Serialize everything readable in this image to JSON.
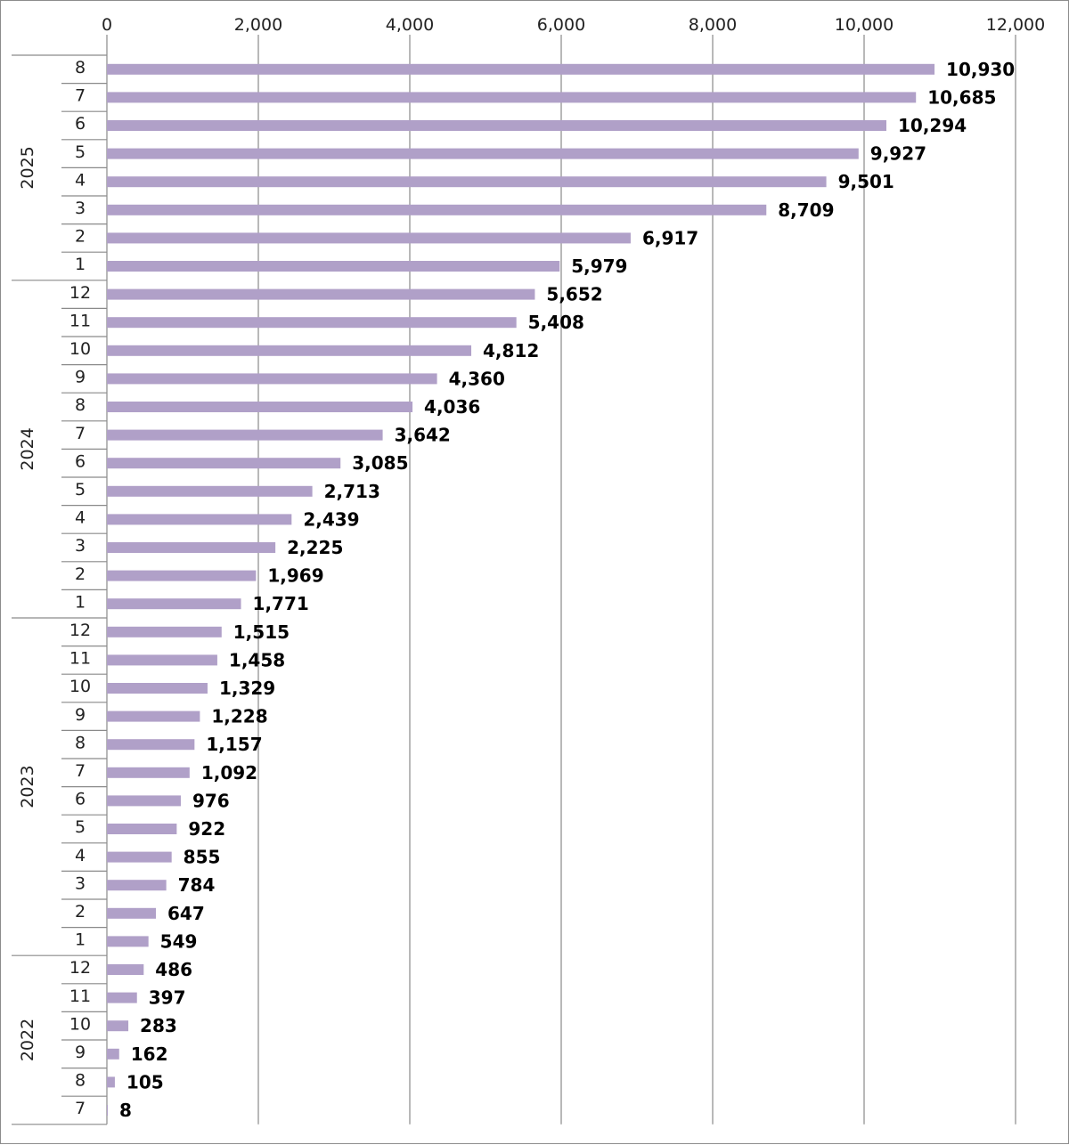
{
  "chart_data": {
    "type": "bar",
    "orientation": "horizontal",
    "title": "",
    "xlabel": "",
    "ylabel": "",
    "xlim": [
      0,
      12000
    ],
    "x_ticks": [
      "0",
      "2,000",
      "4,000",
      "6,000",
      "8,000",
      "10,000",
      "12,000"
    ],
    "x_tick_values": [
      0,
      2000,
      4000,
      6000,
      8000,
      10000,
      12000
    ],
    "grid": "vertical",
    "bar_color": "#b0a0c8",
    "groups": [
      {
        "year": "2025",
        "months": [
          "8",
          "7",
          "6",
          "5",
          "4",
          "3",
          "2",
          "1"
        ]
      },
      {
        "year": "2024",
        "months": [
          "12",
          "11",
          "10",
          "9",
          "8",
          "7",
          "6",
          "5",
          "4",
          "3",
          "2",
          "1"
        ]
      },
      {
        "year": "2023",
        "months": [
          "12",
          "11",
          "10",
          "9",
          "8",
          "7",
          "6",
          "5",
          "4",
          "3",
          "2",
          "1"
        ]
      },
      {
        "year": "2022",
        "months": [
          "12",
          "11",
          "10",
          "9",
          "8",
          "7"
        ]
      }
    ],
    "values": [
      10930,
      10685,
      10294,
      9927,
      9501,
      8709,
      6917,
      5979,
      5652,
      5408,
      4812,
      4360,
      4036,
      3642,
      3085,
      2713,
      2439,
      2225,
      1969,
      1771,
      1515,
      1458,
      1329,
      1228,
      1157,
      1092,
      976,
      922,
      855,
      784,
      647,
      549,
      486,
      397,
      283,
      162,
      105,
      8
    ],
    "data_labels": [
      "10,930",
      "10,685",
      "10,294",
      "9,927",
      "9,501",
      "8,709",
      "6,917",
      "5,979",
      "5,652",
      "5,408",
      "4,812",
      "4,360",
      "4,036",
      "3,642",
      "3,085",
      "2,713",
      "2,439",
      "2,225",
      "1,969",
      "1,771",
      "1,515",
      "1,458",
      "1,329",
      "1,228",
      "1,157",
      "1,092",
      "976",
      "922",
      "855",
      "784",
      "647",
      "549",
      "486",
      "397",
      "283",
      "162",
      "105",
      "8"
    ]
  }
}
